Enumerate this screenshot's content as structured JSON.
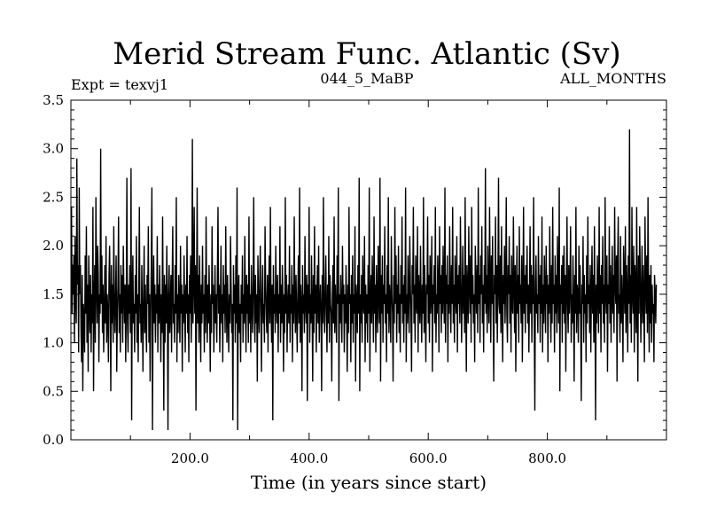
{
  "chart_data": {
    "type": "line",
    "title": "Merid Stream Func. Atlantic (Sv)",
    "subtitle_left": "Expt = texvj1",
    "subtitle_center": "044_5_MaBP",
    "subtitle_right": "ALL_MONTHS",
    "xlabel": "Time (in years since start)",
    "ylabel": "",
    "xlim": [
      0,
      1000
    ],
    "ylim": [
      0.0,
      3.5
    ],
    "xticks": [
      200,
      400,
      600,
      800
    ],
    "xtick_labels": [
      "200.0",
      "400.0",
      "600.0",
      "800.0"
    ],
    "yticks": [
      0.0,
      0.5,
      1.0,
      1.5,
      2.0,
      2.5,
      3.0,
      3.5
    ],
    "ytick_labels": [
      "0.0",
      "0.5",
      "1.0",
      "1.5",
      "2.0",
      "2.5",
      "3.0",
      "3.5"
    ],
    "grid": false,
    "series": [
      {
        "name": "Merid Stream Func. Atlantic",
        "color": "#000000",
        "x_start": 1,
        "x_step": 1,
        "values": [
          2.4,
          1.3,
          1.8,
          1.5,
          1.9,
          1.0,
          2.1,
          1.5,
          1.2,
          2.9,
          1.6,
          1.8,
          0.9,
          2.6,
          1.5,
          1.8,
          1.1,
          0.8,
          1.7,
          0.5,
          1.4,
          1.2,
          0.9,
          1.9,
          1.3,
          2.2,
          1.0,
          1.6,
          0.7,
          1.9,
          1.4,
          1.1,
          1.7,
          0.9,
          1.5,
          1.2,
          2.4,
          0.5,
          1.4,
          1.8,
          1.0,
          2.5,
          1.6,
          1.2,
          2.0,
          1.7,
          0.8,
          1.5,
          1.3,
          3.0,
          1.4,
          1.9,
          1.1,
          1.6,
          0.9,
          1.3,
          1.8,
          1.2,
          2.1,
          1.0,
          1.5,
          1.3,
          0.8,
          1.7,
          2.0,
          1.4,
          0.5,
          1.8,
          1.2,
          1.6,
          1.0,
          2.2,
          1.4,
          1.1,
          1.5,
          1.9,
          0.7,
          1.3,
          1.6,
          2.3,
          1.1,
          1.5,
          0.9,
          1.8,
          1.3,
          1.7,
          1.0,
          2.0,
          1.5,
          1.2,
          1.6,
          0.8,
          1.4,
          2.7,
          1.2,
          0.9,
          1.6,
          1.3,
          1.8,
          1.1,
          2.8,
          0.2,
          1.5,
          1.9,
          1.2,
          1.4,
          0.9,
          1.7,
          1.3,
          2.1,
          1.0,
          1.5,
          0.8,
          1.6,
          2.4,
          1.2,
          1.4,
          1.0,
          1.8,
          1.3,
          0.7,
          1.5,
          2.0,
          1.1,
          1.6,
          1.2,
          0.9,
          1.7,
          1.4,
          2.2,
          1.0,
          1.5,
          0.6,
          1.3,
          1.8,
          2.6,
          0.1,
          1.4,
          1.9,
          1.2,
          1.6,
          1.0,
          1.5,
          1.3,
          2.1,
          0.9,
          1.6,
          1.2,
          1.8,
          1.4,
          0.8,
          1.5,
          1.1,
          2.3,
          1.3,
          0.3,
          1.7,
          1.0,
          1.6,
          1.2,
          2.0,
          1.4,
          0.1,
          1.5,
          1.8,
          1.1,
          1.3,
          1.7,
          0.9,
          1.6,
          2.2,
          1.2,
          1.4,
          1.0,
          1.8,
          1.3,
          2.5,
          0.8,
          1.5,
          1.1,
          1.7,
          1.4,
          1.0,
          2.0,
          1.3,
          1.6,
          0.7,
          1.5,
          1.2,
          1.9,
          1.4,
          0.9,
          1.6,
          1.3,
          2.1,
          1.1,
          1.5,
          0.8,
          1.7,
          1.3,
          1.9,
          1.0,
          1.4,
          3.1,
          1.2,
          1.6,
          2.4,
          1.3,
          1.8,
          0.3,
          1.5,
          2.6,
          1.2,
          1.7,
          1.0,
          1.9,
          1.4,
          0.8,
          1.6,
          1.2,
          2.0,
          1.3,
          1.5,
          0.9,
          1.7,
          1.1,
          2.3,
          1.4,
          1.0,
          1.6,
          1.2,
          1.8,
          1.3,
          0.7,
          1.5,
          1.1,
          2.2,
          1.4,
          1.6,
          0.9,
          1.3,
          1.8,
          1.2,
          1.5,
          1.0,
          1.7,
          2.4,
          1.3,
          1.6,
          0.9,
          1.4,
          2.0,
          1.2,
          1.5,
          0.8,
          1.8,
          1.3,
          1.6,
          1.1,
          2.2,
          1.4,
          1.0,
          1.7,
          1.3,
          0.9,
          1.5,
          1.2,
          2.1,
          1.6,
          1.1,
          1.4,
          0.2,
          1.8,
          1.3,
          1.6,
          1.0,
          1.9,
          1.2,
          2.6,
          0.1,
          1.5,
          1.7,
          1.1,
          1.4,
          0.8,
          1.6,
          1.3,
          1.9,
          1.0,
          1.5,
          1.2,
          2.1,
          1.4,
          0.9,
          1.7,
          1.3,
          1.6,
          1.0,
          2.3,
          1.2,
          1.5,
          0.9,
          1.8,
          1.4,
          1.1,
          1.6,
          2.5,
          1.3,
          1.0,
          1.7,
          1.2,
          1.5,
          0.6,
          1.9,
          1.4,
          1.1,
          1.6,
          2.0,
          1.3,
          0.7,
          1.5,
          1.8,
          1.2,
          1.4,
          1.0,
          2.2,
          1.6,
          1.3,
          1.1,
          1.7,
          0.9,
          1.5,
          1.9,
          1.2,
          2.4,
          1.4,
          1.0,
          1.6,
          0.2,
          1.8,
          1.3,
          1.5,
          1.1,
          2.0,
          1.4,
          1.2,
          1.7,
          0.9,
          1.5,
          1.3,
          2.2,
          1.0,
          1.6,
          1.2,
          1.8,
          1.4,
          0.7,
          1.5,
          1.1,
          2.5,
          1.3,
          1.7,
          0.9,
          1.4,
          1.6,
          1.2,
          2.0,
          1.0,
          1.5,
          1.3,
          1.8,
          0.8,
          1.6,
          1.2,
          2.3,
          1.4,
          1.1,
          1.7,
          1.3,
          0.9,
          1.5,
          1.9,
          1.2,
          2.6,
          1.0,
          1.6,
          1.4,
          0.5,
          1.8,
          1.3,
          1.5,
          1.1,
          2.1,
          1.4,
          1.2,
          1.7,
          0.4,
          1.6,
          1.3,
          2.4,
          1.0,
          1.5,
          1.2,
          1.9,
          1.4,
          0.6,
          1.7,
          1.1,
          2.2,
          1.3,
          1.6,
          0.9,
          1.5,
          1.8,
          1.2,
          2.0,
          1.0,
          1.4,
          1.6,
          1.3,
          0.5,
          1.7,
          1.2,
          2.5,
          1.4,
          1.1,
          1.5,
          1.9,
          1.3,
          0.9,
          1.6,
          1.2,
          2.1,
          1.0,
          1.7,
          1.4,
          1.3,
          0.6,
          1.5,
          1.8,
          1.2,
          2.3,
          1.1,
          1.6,
          1.3,
          1.0,
          1.9,
          1.4,
          2.6,
          0.4,
          1.5,
          1.2,
          1.7,
          1.3,
          1.0,
          2.0,
          1.4,
          1.6,
          0.9,
          1.5,
          1.2,
          1.8,
          1.3,
          0.7,
          1.6,
          1.1,
          2.4,
          1.4,
          1.5,
          0.8,
          1.7,
          1.2,
          1.9,
          1.0,
          1.5,
          1.3,
          2.2,
          0.6,
          1.6,
          1.4,
          1.1,
          1.8,
          1.3,
          2.7,
          0.5,
          1.5,
          1.2,
          1.7,
          1.0,
          1.9,
          1.4,
          1.3,
          2.1,
          0.8,
          1.6,
          1.2,
          1.5,
          1.0,
          1.8,
          1.3,
          2.6,
          0.7,
          1.4,
          1.7,
          1.2,
          1.9,
          1.5,
          1.0,
          2.3,
          1.3,
          1.6,
          0.9,
          1.8,
          1.4,
          1.1,
          2.0,
          1.5,
          1.2,
          2.7,
          0.6,
          1.7,
          1.3,
          1.9,
          1.0,
          1.6,
          1.4,
          2.2,
          1.2,
          1.5,
          0.8,
          1.8,
          1.3,
          2.5,
          1.1,
          1.6,
          1.4,
          1.0,
          2.1,
          1.5,
          1.3,
          0.6,
          1.7,
          1.2,
          2.4,
          1.4,
          1.9,
          1.0,
          1.6,
          1.3,
          2.0,
          1.1,
          1.5,
          0.9,
          1.8,
          1.4,
          2.3,
          1.2,
          1.6,
          1.0,
          1.7,
          1.3,
          2.6,
          0.8,
          1.5,
          1.2,
          1.9,
          1.4,
          1.1,
          2.1,
          1.6,
          1.3,
          0.7,
          1.8,
          1.5,
          2.4,
          1.2,
          1.6,
          1.0,
          1.9,
          1.4,
          1.3,
          2.2,
          0.9,
          1.7,
          1.5,
          1.2,
          2.0,
          1.4,
          1.0,
          1.6,
          1.3,
          2.5,
          1.1,
          1.8,
          1.4,
          0.8,
          1.6,
          1.5,
          2.3,
          1.2,
          1.7,
          1.0,
          1.9,
          1.3,
          1.5,
          2.1,
          0.7,
          1.6,
          1.4,
          1.8,
          1.2,
          2.4,
          1.0,
          1.5,
          1.3,
          1.9,
          1.6,
          0.9,
          2.2,
          1.4,
          1.7,
          1.1,
          1.8,
          1.3,
          2.0,
          1.5,
          1.2,
          2.6,
          1.0,
          1.7,
          1.4,
          1.9,
          0.8,
          1.6,
          1.3,
          2.2,
          1.5,
          1.1,
          1.8,
          1.4,
          2.4,
          1.2,
          1.6,
          1.0,
          1.9,
          1.5,
          1.3,
          2.1,
          0.9,
          1.7,
          1.4,
          1.8,
          1.2,
          2.3,
          1.6,
          1.0,
          1.5,
          2.0,
          1.3,
          1.7,
          1.1,
          2.5,
          1.4,
          0.7,
          1.8,
          1.5,
          1.2,
          2.2,
          1.6,
          1.3,
          1.9,
          1.0,
          2.4,
          1.4,
          1.7,
          1.2,
          1.5,
          0.8,
          2.0,
          1.6,
          1.3,
          1.8,
          1.1,
          2.6,
          1.4,
          1.7,
          1.0,
          1.9,
          1.5,
          2.2,
          1.2,
          1.6,
          0.9,
          1.8,
          1.4,
          2.8,
          1.3,
          1.7,
          1.1,
          2.0,
          1.5,
          1.2,
          2.4,
          1.6,
          1.0,
          1.9,
          1.4,
          2.1,
          1.3,
          0.6,
          1.7,
          1.5,
          2.3,
          1.2,
          1.8,
          1.0,
          1.6,
          2.7,
          1.4,
          1.3,
          1.9,
          1.1,
          2.2,
          1.5,
          0.8,
          1.7,
          1.4,
          2.0,
          1.2,
          1.6,
          2.5,
          1.3,
          1.0,
          1.8,
          1.5,
          2.1,
          1.2,
          1.7,
          0.9,
          1.9,
          1.4,
          1.3,
          2.3,
          1.6,
          1.1,
          1.8,
          0.7,
          1.5,
          2.0,
          1.3,
          1.7,
          1.0,
          2.2,
          1.4,
          1.6,
          1.2,
          1.9,
          0.8,
          1.5,
          2.4,
          1.3,
          1.7,
          1.1,
          1.8,
          1.4,
          2.0,
          1.2,
          1.6,
          0.9,
          1.5,
          2.2,
          1.3,
          1.8,
          1.0,
          1.7,
          1.4,
          2.5,
          1.2,
          0.3,
          1.6,
          1.9,
          1.3,
          1.5,
          1.1,
          2.1,
          1.4,
          1.7,
          1.0,
          1.8,
          1.3,
          2.3,
          0.9,
          1.6,
          1.2,
          1.9,
          1.5,
          1.1,
          2.0,
          1.4,
          1.7,
          0.8,
          1.6,
          1.3,
          2.2,
          1.5,
          1.0,
          1.8,
          1.2,
          2.4,
          1.4,
          1.6,
          0.9,
          1.9,
          1.3,
          1.7,
          1.1,
          2.1,
          1.5,
          1.2,
          2.6,
          0.5,
          1.6,
          1.4,
          1.8,
          1.0,
          1.9,
          1.3,
          2.0,
          1.2,
          1.7,
          0.7,
          1.5,
          2.3,
          1.4,
          1.1,
          1.8,
          1.3,
          1.6,
          2.2,
          1.0,
          1.5,
          1.2,
          1.9,
          1.4,
          0.6,
          1.7,
          1.3,
          2.4,
          1.1,
          1.6,
          1.5,
          1.0,
          2.0,
          1.3,
          1.8,
          1.2,
          0.4,
          1.6,
          1.4,
          2.1,
          1.0,
          1.7,
          1.3,
          1.5,
          0.8,
          1.9,
          1.2,
          2.3,
          1.4,
          1.6,
          1.1,
          1.8,
          0.9,
          1.5,
          2.0,
          1.3,
          1.7,
          1.0,
          2.2,
          1.4,
          0.2,
          1.6,
          1.2,
          1.9,
          1.5,
          1.1,
          2.4,
          1.3,
          1.7,
          0.9,
          1.8,
          1.4,
          2.1,
          1.2,
          1.6,
          1.0,
          2.5,
          1.5,
          1.3,
          1.9,
          0.7,
          1.6,
          1.4,
          2.2,
          1.2,
          1.8,
          1.0,
          1.5,
          2.0,
          1.3,
          1.7,
          1.1,
          2.4,
          1.6,
          1.4,
          1.9,
          0.6,
          1.8,
          2.3,
          1.3,
          1.5,
          1.0,
          2.1,
          1.2,
          1.7,
          1.4,
          0.8,
          2.0,
          1.6,
          1.3,
          2.2,
          1.1,
          1.8,
          1.5,
          0.9,
          1.9,
          1.4,
          3.2,
          1.2,
          1.7,
          1.0,
          2.4,
          1.5,
          1.3,
          2.0,
          0.9,
          1.8,
          1.6,
          1.1,
          2.4,
          1.4,
          0.6,
          1.9,
          1.3,
          2.2,
          1.7,
          1.0,
          1.5,
          2.0,
          1.2,
          1.8,
          1.4,
          0.8,
          2.3,
          1.6,
          1.3,
          1.9,
          1.1,
          2.5,
          1.5,
          0.9,
          1.7,
          1.2,
          1.8,
          1.0,
          1.6,
          1.3,
          1.4,
          0.8,
          1.7,
          1.5,
          1.2,
          1.6
        ]
      }
    ]
  }
}
